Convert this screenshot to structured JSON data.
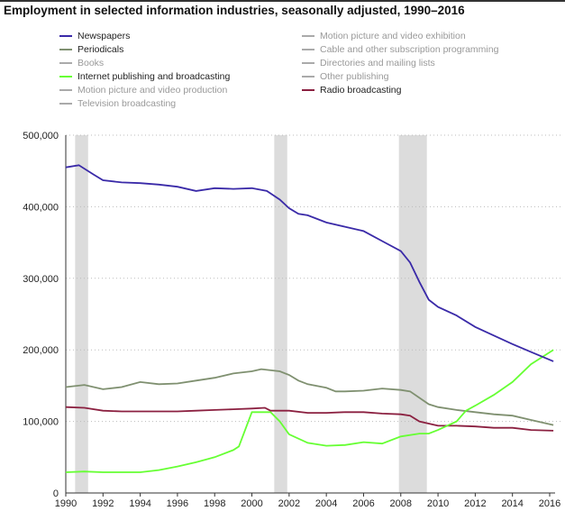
{
  "chart_data": {
    "type": "line",
    "title": "Employment in selected information industries, seasonally adjusted, 1990–2016",
    "xlim": [
      1990,
      2016.3
    ],
    "ylim": [
      0,
      500000
    ],
    "x_ticks": [
      "1990",
      "1992",
      "1994",
      "1996",
      "1998",
      "2000",
      "2002",
      "2004",
      "2006",
      "2008",
      "2010",
      "2012",
      "2014",
      "2016"
    ],
    "y_ticks": [
      "0",
      "100,000",
      "200,000",
      "300,000",
      "400,000",
      "500,000"
    ],
    "grid": "horizontal dotted",
    "legend_placement": "top",
    "recessions": [
      [
        1990.5,
        1991.2
      ],
      [
        2001.2,
        2001.9
      ],
      [
        2007.9,
        2009.4
      ]
    ],
    "legend": [
      {
        "name": "Newspapers",
        "color": "#3a2aa8",
        "active": true
      },
      {
        "name": "Periodicals",
        "color": "#7f9070",
        "active": true
      },
      {
        "name": "Books",
        "color": "#aaaaaa",
        "active": false
      },
      {
        "name": "Internet publishing and broadcasting",
        "color": "#66ff33",
        "active": true
      },
      {
        "name": "Motion picture and video production",
        "color": "#aaaaaa",
        "active": false
      },
      {
        "name": "Television broadcasting",
        "color": "#aaaaaa",
        "active": false
      },
      {
        "name": "Motion picture and video exhibition",
        "color": "#aaaaaa",
        "active": false
      },
      {
        "name": "Cable and other subscription programming",
        "color": "#aaaaaa",
        "active": false
      },
      {
        "name": "Directories and mailing lists",
        "color": "#aaaaaa",
        "active": false
      },
      {
        "name": "Other publishing",
        "color": "#aaaaaa",
        "active": false
      },
      {
        "name": "Radio broadcasting",
        "color": "#8b2040",
        "active": true
      }
    ],
    "series": [
      {
        "name": "Periodicals",
        "color": "#7f9070",
        "x": [
          1990,
          1991,
          1992,
          1993,
          1994,
          1995,
          1996,
          1997,
          1998,
          1999,
          2000,
          2000.5,
          2001.5,
          2002,
          2002.5,
          2003,
          2004,
          2004.5,
          2005,
          2006,
          2007,
          2008,
          2008.5,
          2009,
          2009.5,
          2010,
          2011,
          2012,
          2013,
          2014,
          2015,
          2016.2
        ],
        "y": [
          148000,
          151000,
          145000,
          148000,
          155000,
          152000,
          153000,
          157000,
          161000,
          167000,
          170000,
          173000,
          170000,
          165000,
          157000,
          152000,
          147000,
          142000,
          142000,
          143000,
          146000,
          144000,
          142000,
          133000,
          124000,
          120000,
          116000,
          113000,
          110000,
          108000,
          102000,
          95000
        ]
      },
      {
        "name": "Radio broadcasting",
        "color": "#8b2040",
        "x": [
          1990,
          1991,
          1992,
          1993,
          1994,
          1995,
          1996,
          1997,
          1998,
          1999,
          2000,
          2000.7,
          2001,
          2002,
          2003,
          2004,
          2005,
          2006,
          2007,
          2008,
          2008.5,
          2009,
          2010,
          2011,
          2012,
          2013,
          2014,
          2015,
          2016.2
        ],
        "y": [
          120000,
          119000,
          115000,
          114000,
          114000,
          114000,
          114000,
          115000,
          116000,
          117000,
          118000,
          119000,
          115000,
          115000,
          112000,
          112000,
          113000,
          113000,
          111000,
          110000,
          108000,
          100000,
          94000,
          94000,
          93000,
          91000,
          91000,
          88000,
          87000
        ]
      },
      {
        "name": "Internet publishing and broadcasting",
        "color": "#66ff33",
        "x": [
          1990,
          1991,
          1992,
          1993,
          1994,
          1995,
          1996,
          1997,
          1998,
          1999,
          1999.3,
          2000,
          2001,
          2001.5,
          2002,
          2003,
          2004,
          2005,
          2006,
          2007,
          2008,
          2009,
          2009.5,
          2010,
          2011,
          2011.5,
          2012,
          2013,
          2014,
          2015,
          2016.2
        ],
        "y": [
          29000,
          30000,
          29000,
          29000,
          29000,
          32000,
          37000,
          43000,
          50000,
          60000,
          65000,
          113000,
          113000,
          100000,
          82000,
          70000,
          66000,
          67000,
          71000,
          69000,
          79000,
          83000,
          83000,
          88000,
          100000,
          115000,
          122000,
          137000,
          155000,
          180000,
          200000
        ]
      },
      {
        "name": "Newspapers",
        "color": "#3a2aa8",
        "x": [
          1990,
          1990.7,
          1991.5,
          1992,
          1993,
          1994,
          1995,
          1996,
          1997,
          1998,
          1999,
          2000,
          2000.8,
          2001.5,
          2002,
          2002.5,
          2003,
          2004,
          2005,
          2006,
          2007,
          2008,
          2008.5,
          2009,
          2009.5,
          2010,
          2011,
          2012,
          2013,
          2014,
          2015,
          2016.2
        ],
        "y": [
          455000,
          458000,
          445000,
          437000,
          434000,
          433000,
          431000,
          428000,
          422000,
          426000,
          425000,
          426000,
          422000,
          410000,
          398000,
          390000,
          388000,
          378000,
          372000,
          366000,
          352000,
          338000,
          322000,
          295000,
          270000,
          260000,
          248000,
          232000,
          220000,
          208000,
          197000,
          184000
        ]
      }
    ]
  }
}
